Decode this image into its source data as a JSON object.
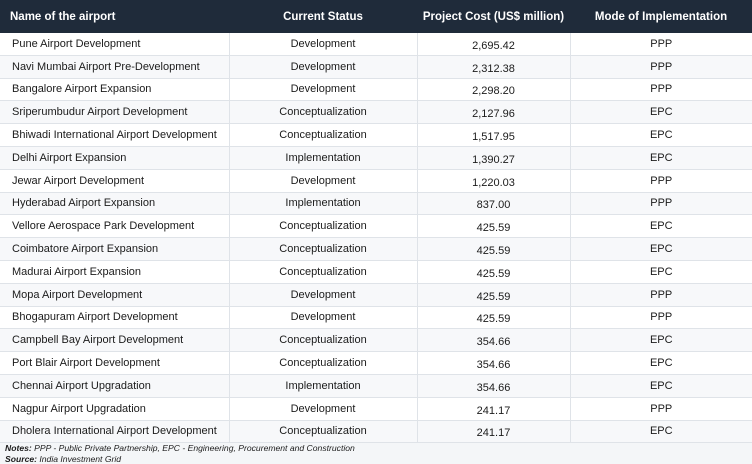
{
  "headers": [
    "Name of the airport",
    "Current Status",
    "Project Cost (US$ million)",
    "Mode of Implementation"
  ],
  "rows": [
    [
      "Pune Airport Development",
      "Development",
      "2,695.42",
      "PPP"
    ],
    [
      "Navi Mumbai Airport Pre-Development",
      "Development",
      "2,312.38",
      "PPP"
    ],
    [
      "Bangalore Airport Expansion",
      "Development",
      "2,298.20",
      "PPP"
    ],
    [
      "Sriperumbudur Airport Development",
      "Conceptualization",
      "2,127.96",
      "EPC"
    ],
    [
      "Bhiwadi International Airport Development",
      "Conceptualization",
      "1,517.95",
      "EPC"
    ],
    [
      "Delhi Airport Expansion",
      "Implementation",
      "1,390.27",
      "EPC"
    ],
    [
      "Jewar Airport Development",
      "Development",
      "1,220.03",
      "PPP"
    ],
    [
      "Hyderabad Airport Expansion",
      "Implementation",
      "837.00",
      "PPP"
    ],
    [
      "Vellore Aerospace Park Development",
      "Conceptualization",
      "425.59",
      "EPC"
    ],
    [
      "Coimbatore Airport Expansion",
      "Conceptualization",
      "425.59",
      "EPC"
    ],
    [
      "Madurai Airport Expansion",
      "Conceptualization",
      "425.59",
      "EPC"
    ],
    [
      "Mopa Airport Development",
      "Development",
      "425.59",
      "PPP"
    ],
    [
      "Bhogapuram Airport Development",
      "Development",
      "425.59",
      "PPP"
    ],
    [
      "Campbell Bay Airport Development",
      "Conceptualization",
      "354.66",
      "EPC"
    ],
    [
      "Port Blair Airport Development",
      "Conceptualization",
      "354.66",
      "EPC"
    ],
    [
      "Chennai Airport Upgradation",
      "Implementation",
      "354.66",
      "EPC"
    ],
    [
      "Nagpur Airport Upgradation",
      "Development",
      "241.17",
      "PPP"
    ],
    [
      "Dholera International Airport Development",
      "Conceptualization",
      "241.17",
      "EPC"
    ]
  ],
  "notes": {
    "notes_label": "Notes:",
    "notes_text": " PPP - Public Private Partnership, EPC - Engineering, Procurement and Construction",
    "source_label": "Source:",
    "source_text": " India Investment Grid"
  }
}
